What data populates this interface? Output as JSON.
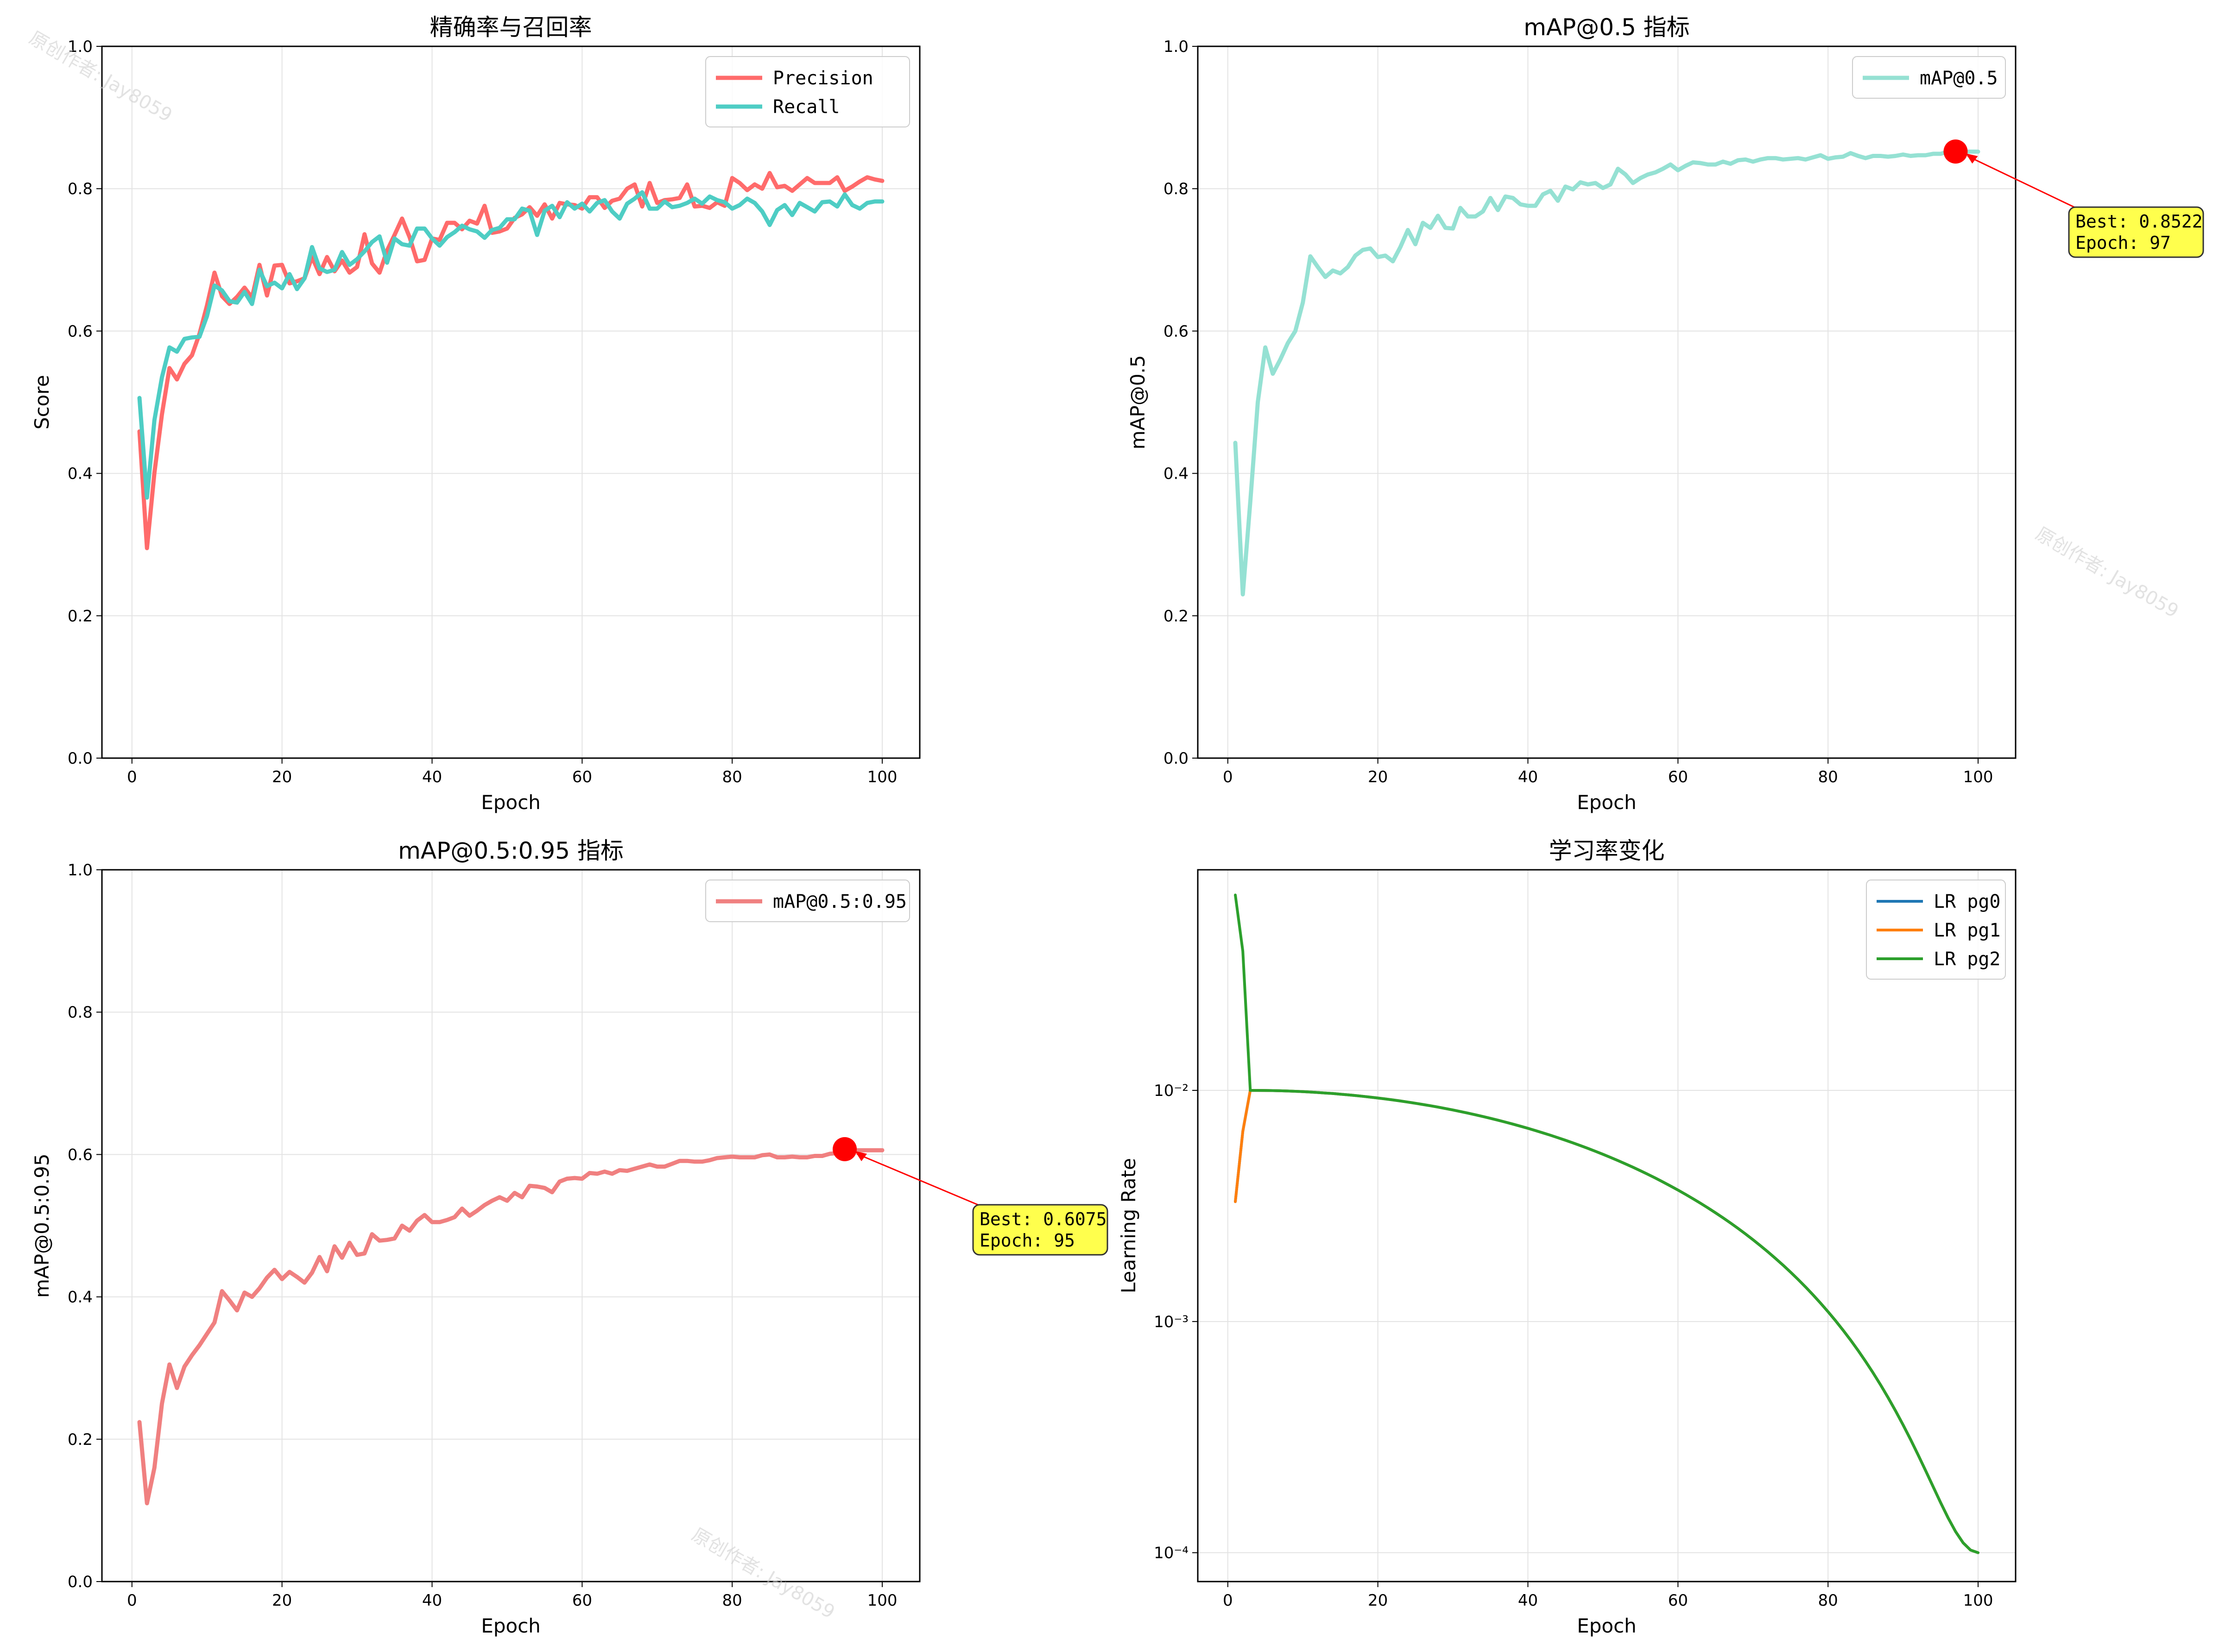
{
  "watermarks": [
    "原创作者: Jay8059",
    "原创作者: Jay8059",
    "原创作者: Jay8059"
  ],
  "chart_data": [
    {
      "type": "line",
      "title": "精确率与召回率",
      "xlabel": "Epoch",
      "ylabel": "Score",
      "xlim": [
        -4,
        105
      ],
      "ylim": [
        0,
        1
      ],
      "xticks": [
        "0",
        "20",
        "40",
        "60",
        "80",
        "100"
      ],
      "yticks": [
        "0.0",
        "0.2",
        "0.4",
        "0.6",
        "0.8",
        "1.0"
      ],
      "grid": true,
      "legend_position": "upper right",
      "series": [
        {
          "name": "Precision",
          "color": "#ff6b6b",
          "values": [
            0.459,
            0.295,
            0.401,
            0.483,
            0.548,
            0.532,
            0.554,
            0.566,
            0.596,
            0.636,
            0.682,
            0.649,
            0.638,
            0.648,
            0.661,
            0.647,
            0.693,
            0.65,
            0.692,
            0.693,
            0.667,
            0.67,
            0.674,
            0.704,
            0.68,
            0.704,
            0.684,
            0.699,
            0.682,
            0.69,
            0.736,
            0.695,
            0.682,
            0.713,
            0.735,
            0.758,
            0.732,
            0.698,
            0.7,
            0.73,
            0.728,
            0.752,
            0.752,
            0.743,
            0.755,
            0.751,
            0.776,
            0.738,
            0.74,
            0.744,
            0.759,
            0.764,
            0.774,
            0.762,
            0.778,
            0.758,
            0.78,
            0.778,
            0.777,
            0.772,
            0.788,
            0.788,
            0.773,
            0.783,
            0.786,
            0.8,
            0.806,
            0.775,
            0.808,
            0.78,
            0.784,
            0.785,
            0.787,
            0.806,
            0.775,
            0.776,
            0.773,
            0.781,
            0.776,
            0.815,
            0.808,
            0.798,
            0.806,
            0.8,
            0.822,
            0.802,
            0.804,
            0.797,
            0.806,
            0.815,
            0.808,
            0.808,
            0.808,
            0.816,
            0.797,
            0.803,
            0.81,
            0.816,
            0.813,
            0.811
          ]
        },
        {
          "name": "Recall",
          "color": "#4ecdc4",
          "values": [
            0.506,
            0.366,
            0.475,
            0.535,
            0.577,
            0.571,
            0.589,
            0.591,
            0.592,
            0.621,
            0.664,
            0.657,
            0.642,
            0.64,
            0.655,
            0.638,
            0.686,
            0.663,
            0.668,
            0.66,
            0.68,
            0.659,
            0.674,
            0.718,
            0.688,
            0.683,
            0.686,
            0.711,
            0.693,
            0.701,
            0.712,
            0.725,
            0.733,
            0.696,
            0.73,
            0.722,
            0.72,
            0.744,
            0.744,
            0.73,
            0.72,
            0.732,
            0.739,
            0.748,
            0.743,
            0.74,
            0.731,
            0.742,
            0.745,
            0.757,
            0.757,
            0.772,
            0.769,
            0.735,
            0.769,
            0.776,
            0.76,
            0.781,
            0.772,
            0.779,
            0.768,
            0.78,
            0.784,
            0.768,
            0.758,
            0.779,
            0.786,
            0.795,
            0.772,
            0.772,
            0.782,
            0.774,
            0.776,
            0.78,
            0.786,
            0.779,
            0.789,
            0.784,
            0.781,
            0.772,
            0.777,
            0.786,
            0.78,
            0.768,
            0.749,
            0.77,
            0.777,
            0.763,
            0.78,
            0.774,
            0.768,
            0.781,
            0.782,
            0.775,
            0.792,
            0.777,
            0.772,
            0.78,
            0.782,
            0.782
          ]
        }
      ]
    },
    {
      "type": "line",
      "title": "mAP@0.5 指标",
      "xlabel": "Epoch",
      "ylabel": "mAP@0.5",
      "xlim": [
        -4,
        105
      ],
      "ylim": [
        0,
        1
      ],
      "xticks": [
        "0",
        "20",
        "40",
        "60",
        "80",
        "100"
      ],
      "yticks": [
        "0.0",
        "0.2",
        "0.4",
        "0.6",
        "0.8",
        "1.0"
      ],
      "grid": true,
      "legend_position": "upper right",
      "series": [
        {
          "name": "mAP@0.5",
          "color": "#95e1d3",
          "values": [
            0.443,
            0.23,
            0.36,
            0.5,
            0.577,
            0.54,
            0.56,
            0.583,
            0.6,
            0.64,
            0.705,
            0.69,
            0.676,
            0.685,
            0.681,
            0.69,
            0.706,
            0.714,
            0.716,
            0.704,
            0.706,
            0.698,
            0.718,
            0.742,
            0.722,
            0.752,
            0.745,
            0.762,
            0.745,
            0.744,
            0.773,
            0.761,
            0.761,
            0.768,
            0.787,
            0.77,
            0.789,
            0.787,
            0.778,
            0.776,
            0.776,
            0.792,
            0.797,
            0.783,
            0.803,
            0.799,
            0.809,
            0.806,
            0.808,
            0.801,
            0.806,
            0.828,
            0.82,
            0.808,
            0.815,
            0.82,
            0.823,
            0.828,
            0.834,
            0.826,
            0.832,
            0.837,
            0.836,
            0.834,
            0.834,
            0.838,
            0.835,
            0.84,
            0.841,
            0.838,
            0.841,
            0.843,
            0.843,
            0.841,
            0.842,
            0.843,
            0.841,
            0.844,
            0.847,
            0.842,
            0.844,
            0.845,
            0.85,
            0.846,
            0.843,
            0.846,
            0.846,
            0.845,
            0.846,
            0.848,
            0.846,
            0.847,
            0.847,
            0.849,
            0.849,
            0.852,
            0.852,
            0.852,
            0.852,
            0.852
          ]
        }
      ],
      "annotation": {
        "x": 97,
        "y": 0.8522,
        "line1": "Best: 0.8522",
        "line2": "Epoch: 97"
      }
    },
    {
      "type": "line",
      "title": "mAP@0.5:0.95 指标",
      "xlabel": "Epoch",
      "ylabel": "mAP@0.5:0.95",
      "xlim": [
        -4,
        105
      ],
      "ylim": [
        0,
        1
      ],
      "xticks": [
        "0",
        "20",
        "40",
        "60",
        "80",
        "100"
      ],
      "yticks": [
        "0.0",
        "0.2",
        "0.4",
        "0.6",
        "0.8",
        "1.0"
      ],
      "grid": true,
      "legend_position": "upper right",
      "series": [
        {
          "name": "mAP@0.5:0.95",
          "color": "#f08080",
          "values": [
            0.224,
            0.11,
            0.16,
            0.25,
            0.305,
            0.272,
            0.302,
            0.318,
            0.332,
            0.348,
            0.364,
            0.408,
            0.395,
            0.381,
            0.406,
            0.4,
            0.412,
            0.427,
            0.438,
            0.425,
            0.435,
            0.428,
            0.42,
            0.434,
            0.456,
            0.436,
            0.471,
            0.455,
            0.476,
            0.459,
            0.461,
            0.488,
            0.479,
            0.48,
            0.482,
            0.5,
            0.493,
            0.507,
            0.515,
            0.505,
            0.505,
            0.508,
            0.512,
            0.524,
            0.514,
            0.521,
            0.529,
            0.535,
            0.54,
            0.535,
            0.546,
            0.54,
            0.556,
            0.555,
            0.553,
            0.547,
            0.562,
            0.566,
            0.567,
            0.566,
            0.574,
            0.573,
            0.576,
            0.573,
            0.578,
            0.577,
            0.58,
            0.583,
            0.586,
            0.583,
            0.583,
            0.587,
            0.591,
            0.591,
            0.59,
            0.59,
            0.592,
            0.595,
            0.596,
            0.597,
            0.596,
            0.596,
            0.596,
            0.599,
            0.6,
            0.596,
            0.596,
            0.597,
            0.596,
            0.596,
            0.598,
            0.598,
            0.601,
            0.602,
            0.6075,
            0.606,
            0.606,
            0.606,
            0.606,
            0.606
          ]
        }
      ],
      "annotation": {
        "x": 95,
        "y": 0.6075,
        "line1": "Best: 0.6075",
        "line2": "Epoch: 95"
      }
    },
    {
      "type": "line",
      "title": "学习率变化",
      "xlabel": "Epoch",
      "ylabel": "Learning Rate",
      "xlim": [
        -4,
        105
      ],
      "ylim": [
        7.5e-05,
        0.09
      ],
      "yscale": "log",
      "xticks": [
        "0",
        "20",
        "40",
        "60",
        "80",
        "100"
      ],
      "yticks": [
        "10⁻²",
        "10⁻³",
        "10⁻⁴"
      ],
      "grid": true,
      "legend_position": "upper right",
      "series": [
        {
          "name": "LR pg0",
          "color": "#1f77b4",
          "schedule": "cosine",
          "warmup_start": 0.0033,
          "warmup_end_epoch": 3,
          "peak": 0.01,
          "final": 0.0001,
          "epochs": 100
        },
        {
          "name": "LR pg1",
          "color": "#ff7f0e",
          "schedule": "cosine",
          "warmup_start": 0.0033,
          "warmup_end_epoch": 3,
          "peak": 0.01,
          "final": 0.0001,
          "epochs": 100
        },
        {
          "name": "LR pg2",
          "color": "#2ca02c",
          "schedule": "cosine",
          "warmup_start": 0.07,
          "warmup_end_epoch": 3,
          "peak": 0.01,
          "final": 0.0001,
          "epochs": 100
        }
      ]
    }
  ]
}
